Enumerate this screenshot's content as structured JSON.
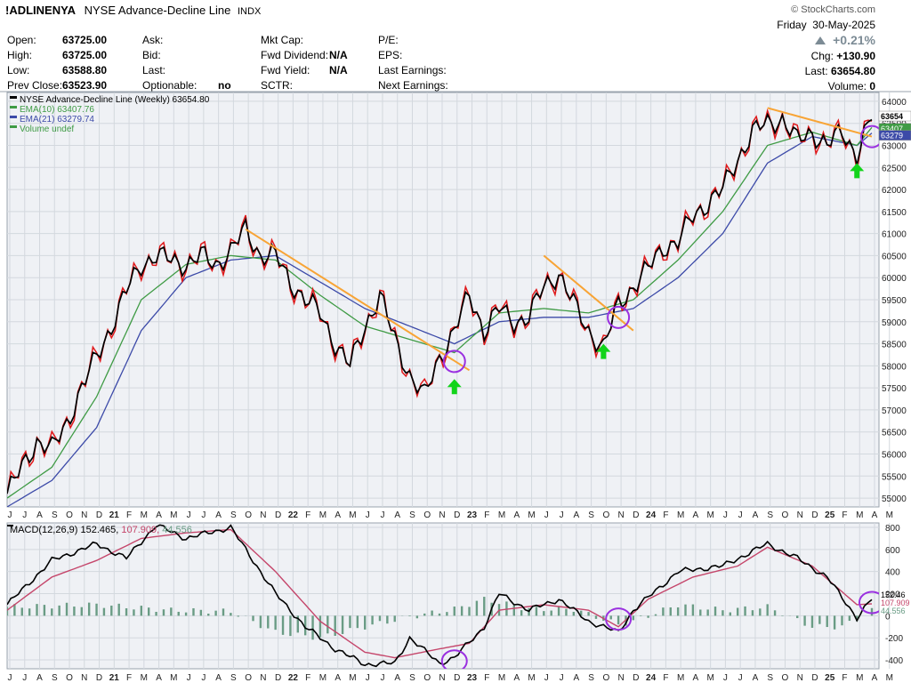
{
  "header": {
    "symbol": "!ADLINENYA",
    "description": "NYSE Advance-Decline Line",
    "exchange": "INDX",
    "brand": "© StockCharts.com",
    "date_day": "Friday",
    "date": "30-May-2025",
    "change_pct": "+0.21%",
    "chg_label": "Chg:",
    "chg_value": "+130.90",
    "last_label": "Last:",
    "last_value": "63654.80",
    "volume_label": "Volume:",
    "volume_value": "0"
  },
  "quote": {
    "col1": [
      {
        "label": "Open:",
        "value": "63725.00"
      },
      {
        "label": "High:",
        "value": "63725.00"
      },
      {
        "label": "Low:",
        "value": "63588.80"
      },
      {
        "label": "Prev Close:",
        "value": "63523.90"
      }
    ],
    "col2": [
      {
        "label": "Ask:",
        "value": ""
      },
      {
        "label": "Bid:",
        "value": ""
      },
      {
        "label": "Last:",
        "value": ""
      },
      {
        "label": "Optionable:",
        "value": "no"
      }
    ],
    "col3": [
      {
        "label": "Mkt Cap:",
        "value": ""
      },
      {
        "label": "Fwd Dividend:",
        "value": "N/A"
      },
      {
        "label": "Fwd Yield:",
        "value": "N/A"
      },
      {
        "label": "SCTR:",
        "value": ""
      }
    ],
    "col4": [
      {
        "label": "P/E:",
        "value": ""
      },
      {
        "label": "EPS:",
        "value": ""
      },
      {
        "label": "Last Earnings:",
        "value": ""
      },
      {
        "label": "Next Earnings:",
        "value": ""
      }
    ]
  },
  "colors": {
    "price": "#000000",
    "price_down": "#e0191b",
    "ema10": "#3f9b45",
    "ema21": "#3c4aa8",
    "trendline": "#f8a435",
    "circle": "#9a30e0",
    "arrow": "#12d41a",
    "macd": "#000000",
    "signal": "#c5466b",
    "histogram": "#6a9c85",
    "panel_bg": "#eff1f5"
  },
  "chart_data": [
    {
      "type": "line",
      "legend": [
        {
          "text": "NYSE Advance-Decline Line (Weekly) 63654.80",
          "color": "#000000"
        },
        {
          "text": "EMA(10) 63407.76",
          "color": "#3f9b45"
        },
        {
          "text": "EMA(21) 63279.74",
          "color": "#3c4aa8"
        },
        {
          "text": "Volume undef",
          "color": "#3f9b45"
        }
      ],
      "legend_position": "top-left",
      "y_axis_side": "right",
      "ylim": [
        54800,
        64200
      ],
      "y_ticks": [
        "64000",
        "63500",
        "63000",
        "62500",
        "62000",
        "61500",
        "61000",
        "60500",
        "60000",
        "59500",
        "59000",
        "58500",
        "58000",
        "57500",
        "57000",
        "56500",
        "56000",
        "55500",
        "55000"
      ],
      "last_labels": [
        "63654",
        "63407",
        "63279"
      ],
      "x_start": "2020-07",
      "x_end": "2025-05",
      "x_tick_labels": [
        "J",
        "J",
        "A",
        "S",
        "O",
        "N",
        "D",
        "21",
        "F",
        "M",
        "A",
        "M",
        "J",
        "J",
        "A",
        "S",
        "O",
        "N",
        "D",
        "22",
        "F",
        "M",
        "A",
        "M",
        "J",
        "J",
        "A",
        "S",
        "O",
        "N",
        "D",
        "23",
        "F",
        "M",
        "A",
        "M",
        "J",
        "J",
        "A",
        "S",
        "O",
        "N",
        "D",
        "24",
        "F",
        "M",
        "A",
        "M",
        "J",
        "J",
        "A",
        "S",
        "O",
        "N",
        "D",
        "25",
        "F",
        "M",
        "A",
        "M"
      ],
      "price_points": [
        [
          "2020-07",
          55100
        ],
        [
          "2020-08",
          55700
        ],
        [
          "2020-09",
          56300
        ],
        [
          "2020-10",
          56100
        ],
        [
          "2020-11",
          56700
        ],
        [
          "2020-12",
          57500
        ],
        [
          "2021-01",
          58200
        ],
        [
          "2021-02",
          58900
        ],
        [
          "2021-03",
          59700
        ],
        [
          "2021-04",
          60300
        ],
        [
          "2021-05",
          60500
        ],
        [
          "2021-06",
          60400
        ],
        [
          "2021-07",
          60300
        ],
        [
          "2021-08",
          60500
        ],
        [
          "2021-09",
          60300
        ],
        [
          "2021-10",
          60600
        ],
        [
          "2021-11",
          61100
        ],
        [
          "2021-12",
          60500
        ],
        [
          "2022-01",
          60500
        ],
        [
          "2022-02",
          59900
        ],
        [
          "2022-03",
          59500
        ],
        [
          "2022-04",
          59200
        ],
        [
          "2022-05",
          58500
        ],
        [
          "2022-06",
          58000
        ],
        [
          "2022-07",
          58900
        ],
        [
          "2022-08",
          59600
        ],
        [
          "2022-09",
          58600
        ],
        [
          "2022-10",
          57800
        ],
        [
          "2022-11",
          57300
        ],
        [
          "2022-12",
          58200
        ],
        [
          "2023-01",
          58800
        ],
        [
          "2023-02",
          59600
        ],
        [
          "2023-03",
          58800
        ],
        [
          "2023-04",
          59300
        ],
        [
          "2023-05",
          59000
        ],
        [
          "2023-06",
          59100
        ],
        [
          "2023-07",
          59800
        ],
        [
          "2023-08",
          60100
        ],
        [
          "2023-09",
          59400
        ],
        [
          "2023-10",
          58800
        ],
        [
          "2023-11",
          58400
        ],
        [
          "2023-12",
          59400
        ],
        [
          "2024-01",
          59800
        ],
        [
          "2024-02",
          60200
        ],
        [
          "2024-03",
          60700
        ],
        [
          "2024-04",
          60800
        ],
        [
          "2024-05",
          61400
        ],
        [
          "2024-06",
          61700
        ],
        [
          "2024-07",
          62000
        ],
        [
          "2024-08",
          62700
        ],
        [
          "2024-09",
          63300
        ],
        [
          "2024-10",
          63500
        ],
        [
          "2024-11",
          63600
        ],
        [
          "2024-12",
          63100
        ],
        [
          "2025-01",
          63300
        ],
        [
          "2025-02",
          63000
        ],
        [
          "2025-03",
          63300
        ],
        [
          "2025-04",
          62800
        ],
        [
          "2025-05",
          63654.8
        ]
      ],
      "ema10_points": [
        [
          "2020-07",
          55000
        ],
        [
          "2020-10",
          55700
        ],
        [
          "2021-01",
          57300
        ],
        [
          "2021-04",
          59500
        ],
        [
          "2021-07",
          60300
        ],
        [
          "2021-10",
          60500
        ],
        [
          "2022-01",
          60400
        ],
        [
          "2022-04",
          59600
        ],
        [
          "2022-07",
          58900
        ],
        [
          "2022-10",
          58600
        ],
        [
          "2023-01",
          58300
        ],
        [
          "2023-04",
          59200
        ],
        [
          "2023-07",
          59300
        ],
        [
          "2023-10",
          59200
        ],
        [
          "2024-01",
          59500
        ],
        [
          "2024-04",
          60400
        ],
        [
          "2024-07",
          61500
        ],
        [
          "2024-10",
          63000
        ],
        [
          "2025-01",
          63300
        ],
        [
          "2025-04",
          63000
        ],
        [
          "2025-05",
          63407.76
        ]
      ],
      "ema21_points": [
        [
          "2020-07",
          54800
        ],
        [
          "2020-10",
          55400
        ],
        [
          "2021-01",
          56600
        ],
        [
          "2021-04",
          58800
        ],
        [
          "2021-07",
          60000
        ],
        [
          "2021-10",
          60400
        ],
        [
          "2022-01",
          60500
        ],
        [
          "2022-04",
          59900
        ],
        [
          "2022-07",
          59300
        ],
        [
          "2022-10",
          58900
        ],
        [
          "2023-01",
          58500
        ],
        [
          "2023-04",
          59000
        ],
        [
          "2023-07",
          59100
        ],
        [
          "2023-10",
          59100
        ],
        [
          "2024-01",
          59300
        ],
        [
          "2024-04",
          60000
        ],
        [
          "2024-07",
          61000
        ],
        [
          "2024-10",
          62600
        ],
        [
          "2025-01",
          63200
        ],
        [
          "2025-04",
          63000
        ],
        [
          "2025-05",
          63279.74
        ]
      ],
      "trendlines": [
        [
          [
            "2021-11",
            61100
          ],
          [
            "2023-02",
            57900
          ]
        ],
        [
          [
            "2023-07",
            60500
          ],
          [
            "2024-01",
            58800
          ]
        ],
        [
          [
            "2024-10",
            63850
          ],
          [
            "2025-05",
            63200
          ]
        ]
      ],
      "circles": [
        [
          "2023-01",
          58100
        ],
        [
          "2023-12",
          59100
        ],
        [
          "2025-05",
          63200
        ]
      ],
      "arrows": [
        [
          "2023-01",
          57700
        ],
        [
          "2023-11",
          58500
        ],
        [
          "2025-04",
          62600
        ]
      ]
    },
    {
      "type": "line",
      "title": "MACD(12,26,9)",
      "legend_values": [
        "152.465",
        "107.909",
        "44.556"
      ],
      "y_axis_side": "right",
      "ylim": [
        -480,
        840
      ],
      "y_ticks": [
        "800",
        "600",
        "400",
        "200",
        "0",
        "-200",
        "-400"
      ],
      "last_labels": [
        "152.46",
        "107.909",
        "44.556"
      ],
      "series": [
        {
          "name": "MACD",
          "points": [
            [
              "2020-07",
              100
            ],
            [
              "2020-10",
              500
            ],
            [
              "2021-01",
              650
            ],
            [
              "2021-03",
              520
            ],
            [
              "2021-05",
              820
            ],
            [
              "2021-07",
              700
            ],
            [
              "2021-10",
              800
            ],
            [
              "2022-01",
              200
            ],
            [
              "2022-03",
              -100
            ],
            [
              "2022-05",
              -300
            ],
            [
              "2022-07",
              -440
            ],
            [
              "2022-09",
              -430
            ],
            [
              "2022-10",
              -200
            ],
            [
              "2022-12",
              -430
            ],
            [
              "2023-01",
              -380
            ],
            [
              "2023-03",
              -100
            ],
            [
              "2023-04",
              200
            ],
            [
              "2023-06",
              50
            ],
            [
              "2023-08",
              150
            ],
            [
              "2023-10",
              -50
            ],
            [
              "2023-12",
              -150
            ],
            [
              "2024-01",
              50
            ],
            [
              "2024-04",
              400
            ],
            [
              "2024-07",
              450
            ],
            [
              "2024-10",
              650
            ],
            [
              "2024-12",
              520
            ],
            [
              "2025-02",
              350
            ],
            [
              "2025-04",
              -20
            ],
            [
              "2025-05",
              152.465
            ]
          ]
        },
        {
          "name": "Signal",
          "points": [
            [
              "2020-07",
              50
            ],
            [
              "2020-10",
              350
            ],
            [
              "2021-01",
              500
            ],
            [
              "2021-04",
              700
            ],
            [
              "2021-07",
              750
            ],
            [
              "2021-10",
              780
            ],
            [
              "2022-01",
              400
            ],
            [
              "2022-04",
              -50
            ],
            [
              "2022-07",
              -330
            ],
            [
              "2022-09",
              -380
            ],
            [
              "2022-12",
              -300
            ],
            [
              "2023-02",
              -250
            ],
            [
              "2023-04",
              50
            ],
            [
              "2023-07",
              100
            ],
            [
              "2023-10",
              50
            ],
            [
              "2023-12",
              -100
            ],
            [
              "2024-02",
              150
            ],
            [
              "2024-05",
              350
            ],
            [
              "2024-08",
              450
            ],
            [
              "2024-10",
              620
            ],
            [
              "2025-01",
              450
            ],
            [
              "2025-04",
              100
            ],
            [
              "2025-05",
              107.909
            ]
          ]
        },
        {
          "name": "Histogram",
          "points": [
            [
              "2020-07",
              80
            ],
            [
              "2021-01",
              100
            ],
            [
              "2021-06",
              50
            ],
            [
              "2021-10",
              40
            ],
            [
              "2022-01",
              -150
            ],
            [
              "2022-04",
              -200
            ],
            [
              "2022-07",
              -100
            ],
            [
              "2022-10",
              -10
            ],
            [
              "2023-01",
              60
            ],
            [
              "2023-03",
              150
            ],
            [
              "2023-06",
              60
            ],
            [
              "2023-09",
              60
            ],
            [
              "2023-12",
              -80
            ],
            [
              "2024-01",
              -50
            ],
            [
              "2024-04",
              100
            ],
            [
              "2024-07",
              50
            ],
            [
              "2024-10",
              80
            ],
            [
              "2025-01",
              -100
            ],
            [
              "2025-03",
              -100
            ],
            [
              "2025-05",
              44.556
            ]
          ]
        }
      ],
      "circles": [
        [
          "2023-01",
          -410
        ],
        [
          "2023-12",
          -30
        ],
        [
          "2025-05",
          120
        ]
      ]
    }
  ]
}
